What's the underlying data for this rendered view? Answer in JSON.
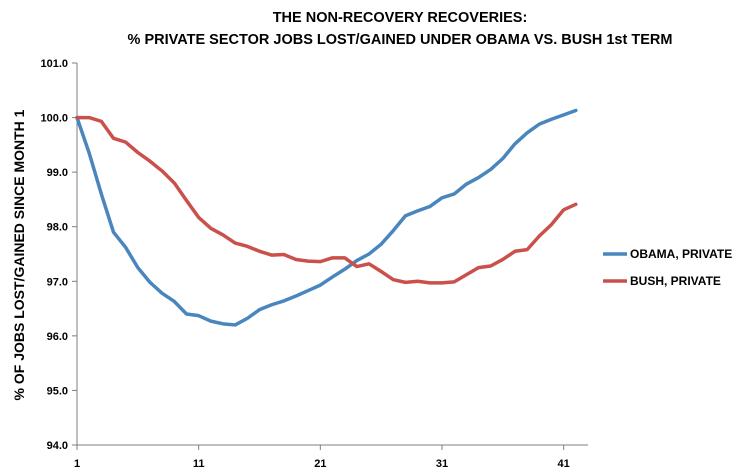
{
  "chart_data": {
    "type": "line",
    "title": "THE NON-RECOVERY RECOVERIES:",
    "subtitle": "% PRIVATE SECTOR JOBS LOST/GAINED UNDER OBAMA VS. BUSH  1st TERM",
    "xlabel": "",
    "ylabel": "% OF JOBS LOST/GAINED SINCE MONTH 1",
    "xlim": [
      1,
      43
    ],
    "ylim": [
      94.0,
      101.0
    ],
    "x_ticks": [
      "1",
      "11",
      "21",
      "31",
      "41"
    ],
    "y_ticks": [
      "94.0",
      "95.0",
      "96.0",
      "97.0",
      "98.0",
      "99.0",
      "100.0",
      "101.0"
    ],
    "grid": false,
    "legend_position": "right",
    "x": [
      1,
      2,
      3,
      4,
      5,
      6,
      7,
      8,
      9,
      10,
      11,
      12,
      13,
      14,
      15,
      16,
      17,
      18,
      19,
      20,
      21,
      22,
      23,
      24,
      25,
      26,
      27,
      28,
      29,
      30,
      31,
      32,
      33,
      34,
      35,
      36,
      37,
      38,
      39,
      40,
      41,
      42
    ],
    "series": [
      {
        "name": "OBAMA, PRIVATE",
        "color": "#4a86be",
        "values": [
          100.0,
          99.35,
          98.6,
          97.9,
          97.62,
          97.25,
          96.98,
          96.78,
          96.63,
          96.4,
          96.37,
          96.27,
          96.22,
          96.2,
          96.32,
          96.48,
          96.57,
          96.64,
          96.73,
          96.83,
          96.93,
          97.08,
          97.22,
          97.38,
          97.5,
          97.68,
          97.93,
          98.2,
          98.29,
          98.37,
          98.53,
          98.6,
          98.78,
          98.9,
          99.05,
          99.25,
          99.52,
          99.72,
          99.88,
          99.97,
          100.05,
          100.13
        ]
      },
      {
        "name": "BUSH, PRIVATE",
        "color": "#c9504b",
        "values": [
          100.0,
          100.0,
          99.93,
          99.62,
          99.55,
          99.36,
          99.2,
          99.02,
          98.8,
          98.48,
          98.17,
          97.97,
          97.85,
          97.7,
          97.64,
          97.55,
          97.48,
          97.49,
          97.4,
          97.37,
          97.36,
          97.43,
          97.43,
          97.27,
          97.32,
          97.18,
          97.03,
          96.98,
          97.0,
          96.97,
          96.97,
          96.99,
          97.12,
          97.25,
          97.28,
          97.4,
          97.55,
          97.58,
          97.83,
          98.04,
          98.31,
          98.41
        ]
      }
    ]
  }
}
